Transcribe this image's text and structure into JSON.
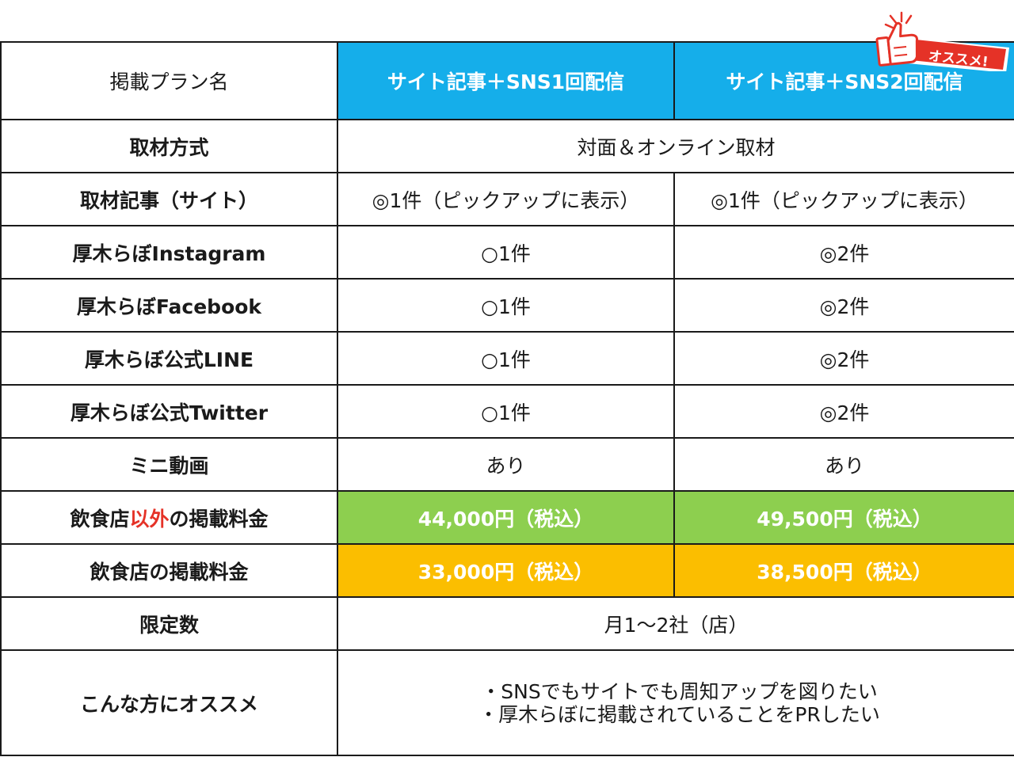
{
  "table": {
    "header": {
      "label": "掲載プラン名",
      "plan_a": "サイト記事＋SNS1回配信",
      "plan_b": "サイト記事＋SNS2回配信"
    },
    "rows": [
      {
        "label": "取材方式",
        "merged": "対面＆オンライン取材"
      },
      {
        "label": "取材記事（サイト）",
        "a": "◎1件（ピックアップに表示）",
        "b": "◎1件（ピックアップに表示）"
      },
      {
        "label": "厚木らぼInstagram",
        "a": "○1件",
        "b": "◎2件"
      },
      {
        "label": "厚木らぼFacebook",
        "a": "○1件",
        "b": "◎2件"
      },
      {
        "label": "厚木らぼ公式LINE",
        "a": "○1件",
        "b": "◎2件"
      },
      {
        "label": "厚木らぼ公式Twitter",
        "a": "○1件",
        "b": "◎2件"
      },
      {
        "label": "ミニ動画",
        "a": "あり",
        "b": "あり"
      },
      {
        "label_pre": "飲食店",
        "label_accent": "以外",
        "label_post": "の掲載料金",
        "a": "44,000円（税込）",
        "b": "49,500円（税込）"
      },
      {
        "label": "飲食店の掲載料金",
        "a": "33,000円（税込）",
        "b": "38,500円（税込）"
      },
      {
        "label": "限定数",
        "merged": "月1～2社（店）"
      },
      {
        "label": "こんな方にオススメ",
        "items": [
          "・SNSでもサイトでも周知アップを図りたい",
          "・厚木らぼに掲載されていることをPRしたい"
        ]
      }
    ]
  },
  "badge": {
    "text": "オススメ!",
    "icon": "thumbs-up-icon",
    "bg_color": "#e53227"
  },
  "colors": {
    "header_blue": "#15aeea",
    "price_green": "#8dcf4f",
    "price_orange": "#fbbe00",
    "accent_red": "#e53227"
  }
}
